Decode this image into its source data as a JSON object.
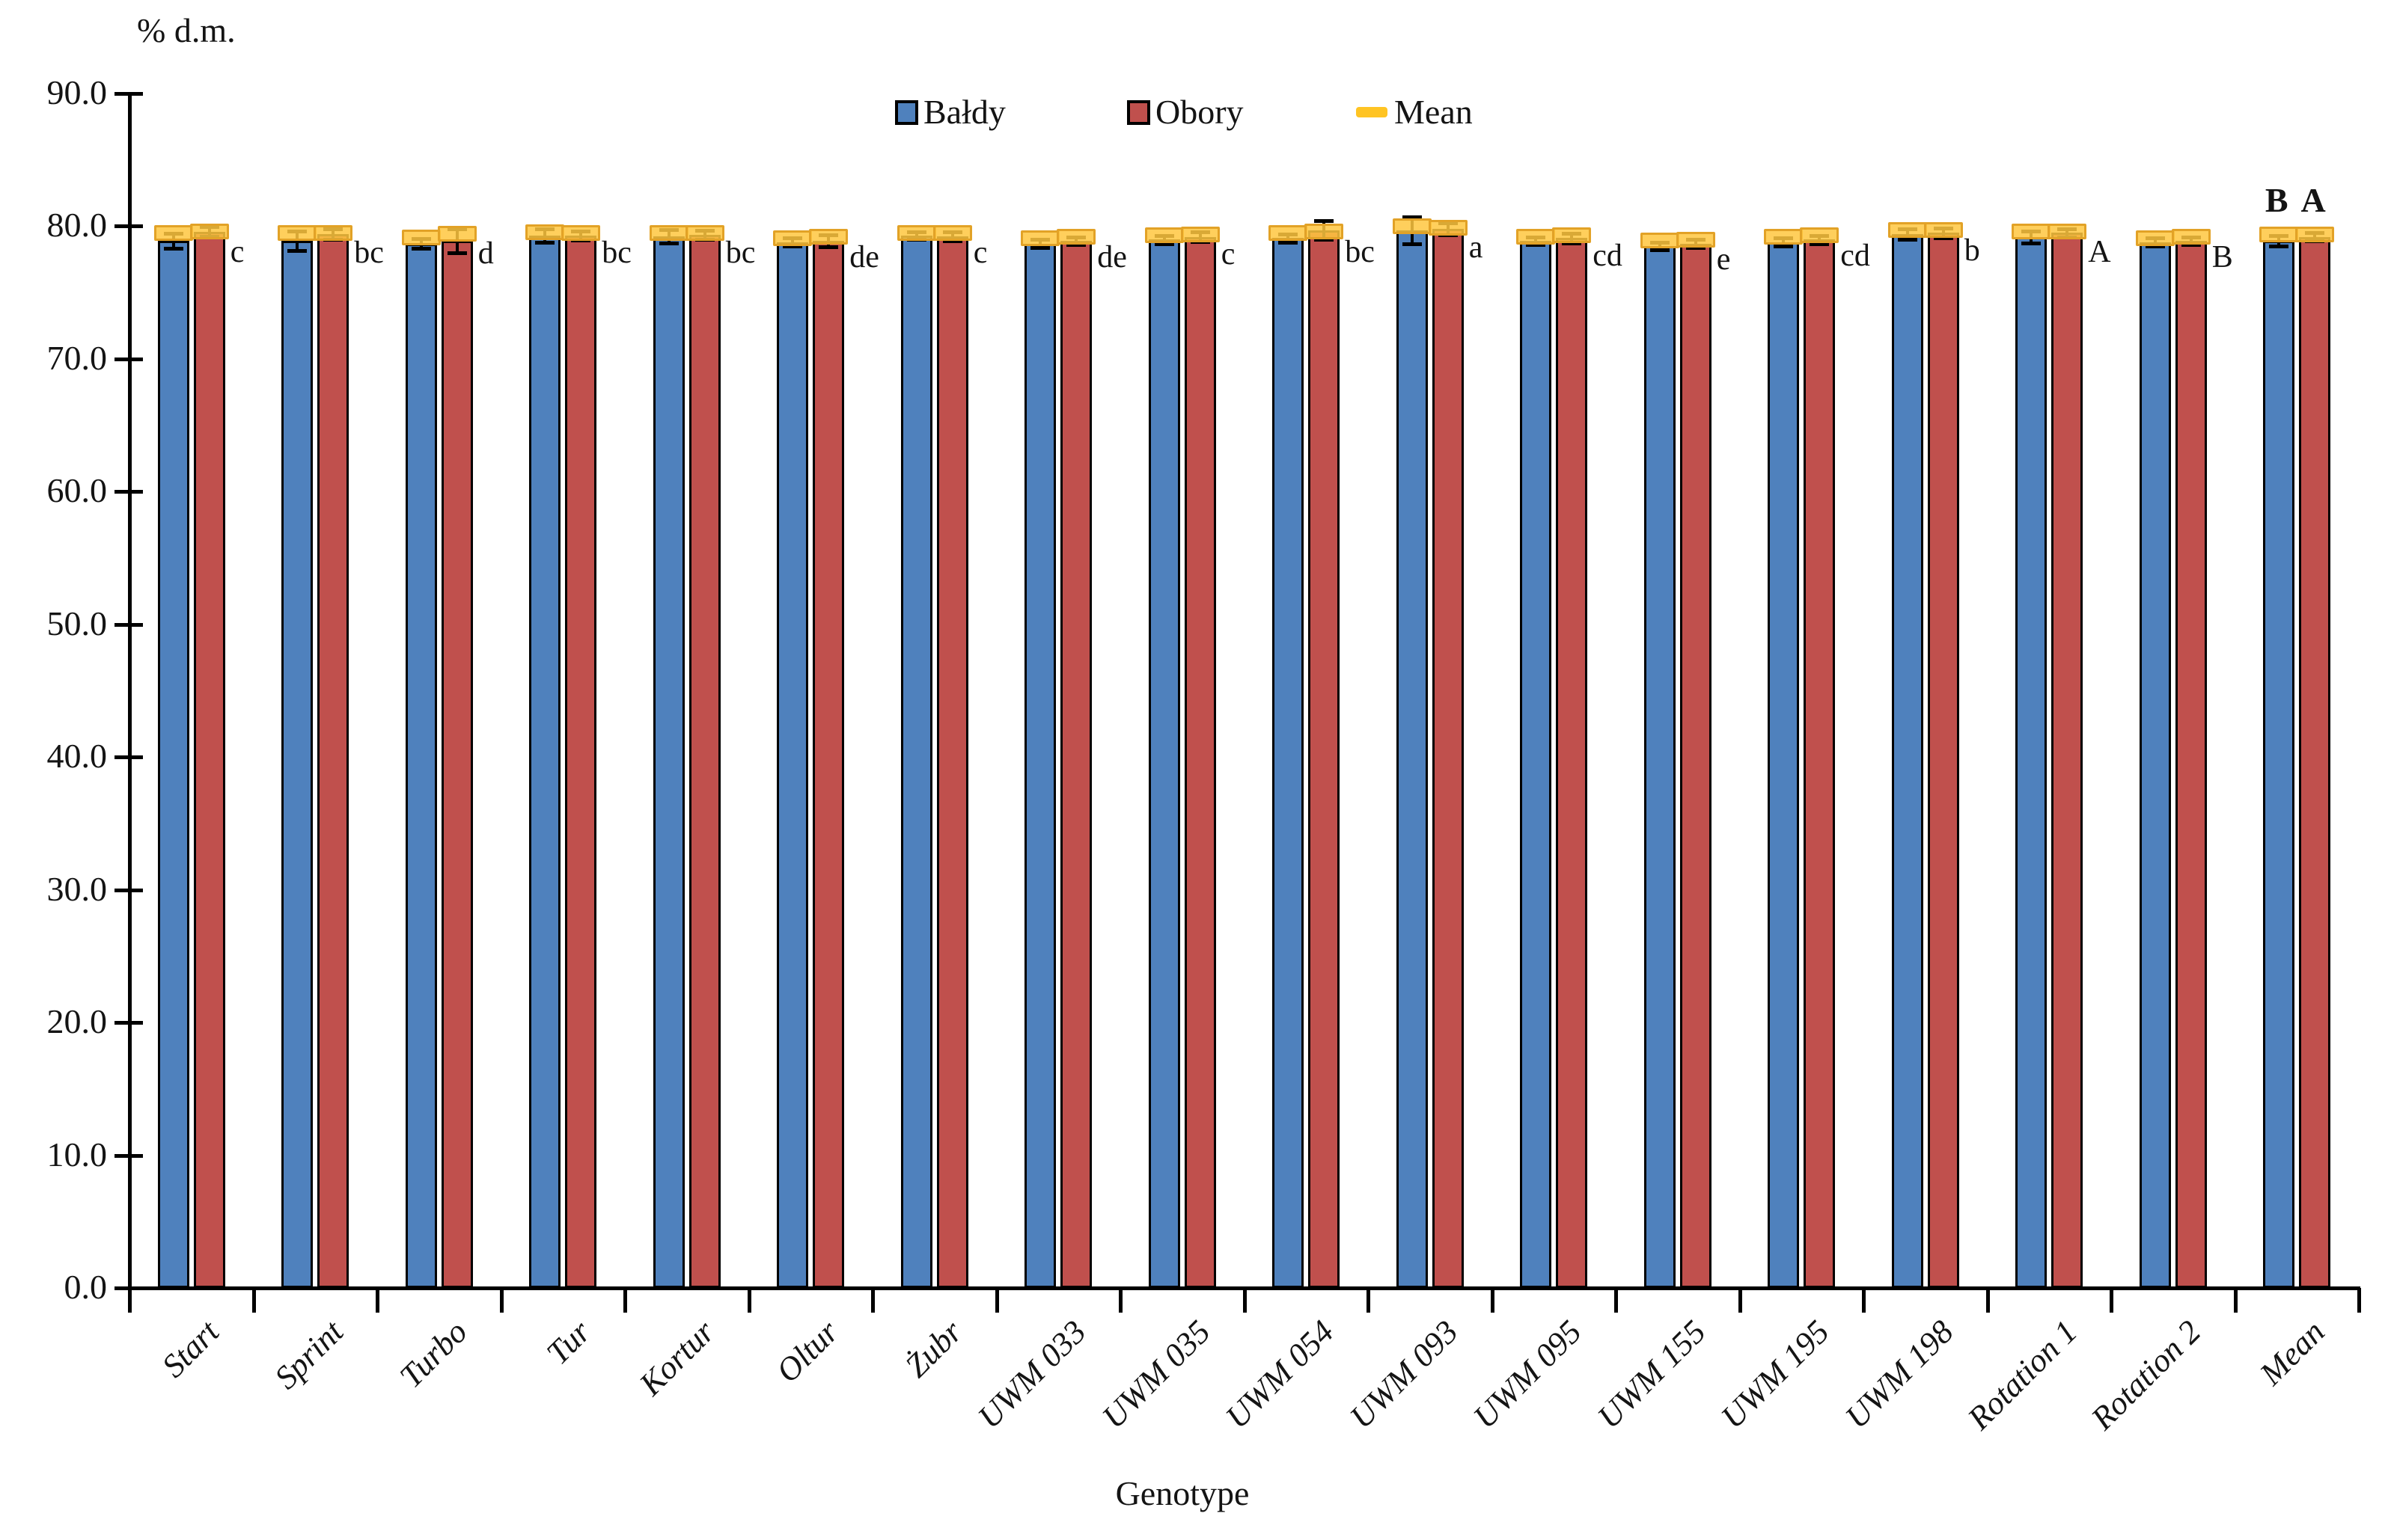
{
  "chart_data": {
    "type": "bar",
    "title": "",
    "ylabel": "% d.m.",
    "xlabel": "Genotype",
    "ylim": [
      0,
      90
    ],
    "ytick_step": 10,
    "ytick_labels": [
      "0.0",
      "10.0",
      "20.0",
      "30.0",
      "40.0",
      "50.0",
      "60.0",
      "70.0",
      "80.0",
      "90.0"
    ],
    "grid": false,
    "legend_position": "top-center",
    "categories": [
      "Start",
      "Sprint",
      "Turbo",
      "Tur",
      "Kortur",
      "Oltur",
      "Żubr",
      "UWM 033",
      "UWM 035",
      "UWM 054",
      "UWM 093",
      "UWM 095",
      "UWM 155",
      "UWM 195",
      "UWM 198",
      "Rotation 1",
      "Rotation 2",
      "Mean"
    ],
    "series": [
      {
        "name": "Bałdy",
        "color": "#4F81BD",
        "values": [
          78.9,
          78.9,
          78.7,
          79.3,
          79.25,
          78.8,
          79.3,
          78.7,
          79.0,
          79.1,
          79.7,
          78.9,
          78.5,
          78.8,
          79.4,
          79.2,
          78.8,
          78.9
        ],
        "errors": [
          0.55,
          0.75,
          0.35,
          0.5,
          0.5,
          0.3,
          0.3,
          0.3,
          0.3,
          0.3,
          1.0,
          0.3,
          0.3,
          0.3,
          0.4,
          0.45,
          0.3,
          0.4
        ],
        "means": [
          79.5,
          79.5,
          79.15,
          79.55,
          79.5,
          79.1,
          79.5,
          79.1,
          79.3,
          79.5,
          80.0,
          79.2,
          78.9,
          79.2,
          79.7,
          79.6,
          79.1,
          79.4
        ]
      },
      {
        "name": "Obory",
        "color": "#C0504D",
        "values": [
          79.6,
          79.4,
          78.9,
          79.3,
          79.35,
          78.9,
          79.25,
          78.9,
          79.2,
          79.7,
          79.8,
          79.1,
          78.7,
          79.0,
          79.5,
          79.5,
          78.9,
          79.2
        ],
        "errors": [
          0.35,
          0.4,
          0.9,
          0.35,
          0.35,
          0.45,
          0.35,
          0.3,
          0.35,
          0.7,
          0.45,
          0.35,
          0.3,
          0.3,
          0.35,
          0.3,
          0.3,
          0.3
        ],
        "means": [
          79.6,
          79.5,
          79.45,
          79.5,
          79.5,
          79.2,
          79.5,
          79.2,
          79.4,
          79.6,
          79.9,
          79.3,
          79.0,
          79.3,
          79.7,
          79.6,
          79.2,
          79.4
        ]
      }
    ],
    "mean_marker": {
      "label": "Mean",
      "fill": "#FFC423",
      "border": "#E2A227"
    },
    "significance_letters": [
      "c",
      "bc",
      "d",
      "bc",
      "bc",
      "de",
      "c",
      "de",
      "c",
      "bc",
      "a",
      "cd",
      "e",
      "cd",
      "b",
      "A",
      "B"
    ],
    "mean_group_letter": "B A",
    "bar_border_color": "#000000",
    "axis_color": "#000000"
  }
}
